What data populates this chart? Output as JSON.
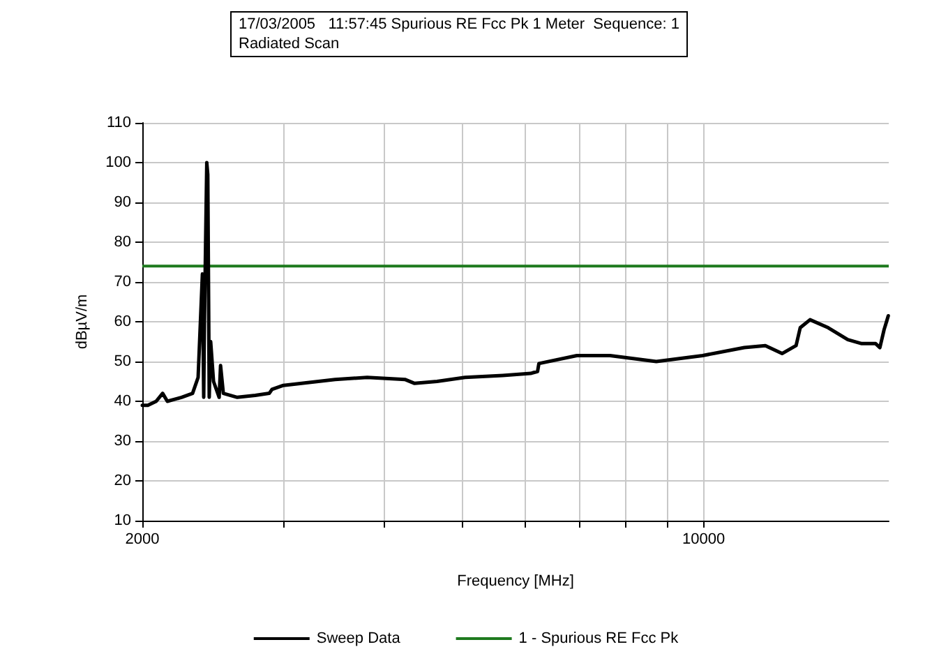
{
  "chart_data": {
    "type": "line",
    "title": "17/03/2005   11:57:45 Spurious RE Fcc Pk 1 Meter  Sequence: 1",
    "subtitle": "Radiated Scan",
    "xlabel": "Frequency [MHz]",
    "ylabel": "dBµV/m",
    "x": [
      2000,
      2032,
      2081,
      2120,
      2149,
      2238,
      2310,
      2347,
      2376,
      2385,
      2390,
      2406,
      2413,
      2423,
      2433,
      2453,
      2493,
      2503,
      2523,
      2626,
      2765,
      2878,
      2901,
      2997,
      3476,
      3811,
      4246,
      4366,
      4656,
      5045,
      5622,
      6088,
      6211,
      6235,
      6951,
      7646,
      8730,
      9971,
      11236,
      11933,
      12521,
      13033,
      13190,
      13566,
      14290,
      15115,
      15732,
      16373,
      16574,
      16774,
      16977
    ],
    "series": [
      {
        "name": "Sweep Data",
        "color": "#000000",
        "values": [
          39,
          39,
          40,
          42,
          40,
          41,
          42,
          46,
          72,
          41,
          60,
          100,
          97,
          41,
          55,
          45,
          41,
          49,
          42,
          41,
          41.5,
          42,
          43,
          44,
          45.5,
          46,
          45.5,
          44.5,
          45,
          46,
          46.5,
          47,
          47.5,
          49.5,
          51.5,
          51.5,
          50,
          51.5,
          53.5,
          54,
          52,
          54,
          58.5,
          60.5,
          58.5,
          55.5,
          54.5,
          54.5,
          53.5,
          58,
          61.5
        ]
      }
    ],
    "ref_lines": [
      {
        "axis": "y",
        "value": 74,
        "label": "1 - Spurious RE Fcc Pk",
        "color": "#1e7a1e"
      }
    ],
    "log": "x",
    "xlim": [
      2000,
      17000
    ],
    "xticks": [
      2000,
      {
        "value": 3000,
        "label": null
      },
      {
        "value": 4000,
        "label": null
      },
      {
        "value": 5000,
        "label": null
      },
      {
        "value": 6000,
        "label": null
      },
      {
        "value": 7000,
        "label": null
      },
      {
        "value": 8000,
        "label": null
      },
      {
        "value": 9000,
        "label": null
      },
      10000
    ],
    "ylim": [
      10,
      110
    ],
    "yticks": [
      10,
      20,
      30,
      40,
      50,
      60,
      70,
      80,
      90,
      100,
      110
    ],
    "grid": true,
    "legend": "bottom",
    "marker": "none",
    "line_style": "solid"
  }
}
